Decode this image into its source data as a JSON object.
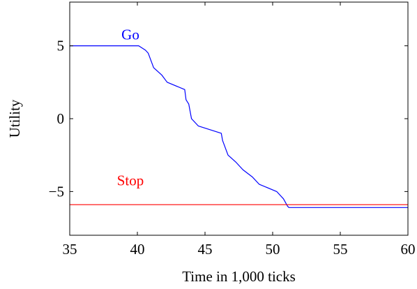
{
  "chart_data": {
    "type": "line",
    "xlabel": "Time in 1,000 ticks",
    "ylabel": "Utility",
    "xlim": [
      35,
      60
    ],
    "ylim": [
      -8,
      8
    ],
    "xticks": [
      35,
      40,
      45,
      50,
      55,
      60
    ],
    "yticks": [
      -5,
      0,
      5
    ],
    "ytick_labels": [
      "−5",
      "0",
      "5"
    ],
    "grid": false,
    "series": [
      {
        "name": "Go",
        "color": "#0000ff",
        "label_at": [
          40,
          5
        ],
        "x": [
          35,
          40.1,
          40.6,
          40.8,
          41.2,
          41.8,
          42.2,
          43.5,
          43.6,
          43.8,
          44.0,
          44.5,
          46.2,
          46.3,
          46.7,
          47.3,
          47.8,
          48.5,
          49.0,
          50.3,
          50.8,
          51.1,
          51.2,
          60
        ],
        "values": [
          5,
          5,
          4.7,
          4.5,
          3.5,
          3.0,
          2.5,
          2.0,
          1.3,
          1.0,
          0,
          -0.5,
          -1.0,
          -1.5,
          -2.5,
          -3.0,
          -3.5,
          -4.0,
          -4.5,
          -5.0,
          -5.5,
          -6.0,
          -6.1,
          -6.1
        ]
      },
      {
        "name": "Stop",
        "color": "#ff0000",
        "label_at": [
          40,
          -5
        ],
        "x": [
          35,
          60
        ],
        "values": [
          -5.9,
          -5.9
        ]
      }
    ]
  }
}
